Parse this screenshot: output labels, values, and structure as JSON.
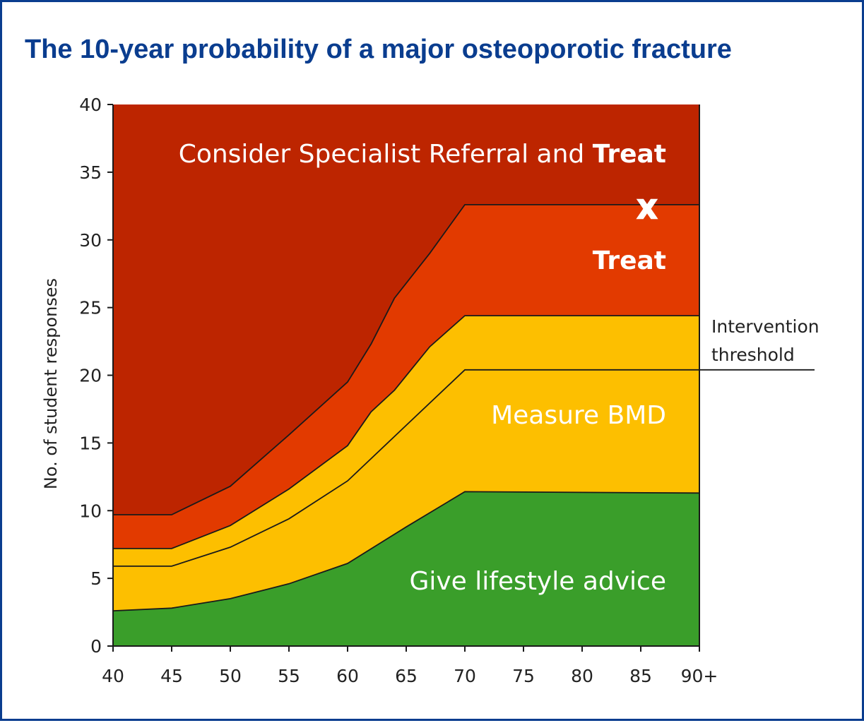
{
  "title": "The 10-year probability of a major osteoporotic fracture",
  "chart_data": {
    "type": "area",
    "title": "The 10-year probability of a major osteoporotic fracture",
    "xlabel": "",
    "ylabel": "No. of student responses",
    "x_ticks": [
      "40",
      "45",
      "50",
      "55",
      "60",
      "65",
      "70",
      "75",
      "80",
      "85",
      "90+"
    ],
    "y_ticks": [
      "0",
      "5",
      "10",
      "15",
      "20",
      "25",
      "30",
      "35",
      "40"
    ],
    "xlim": [
      40,
      90
    ],
    "ylim": [
      0,
      40
    ],
    "grid": false,
    "boundaries": [
      {
        "points": [
          [
            40,
            2.6
          ],
          [
            45,
            2.8
          ],
          [
            50,
            3.5
          ],
          [
            55,
            4.6
          ],
          [
            60,
            6.1
          ],
          [
            65,
            8.8
          ],
          [
            70,
            11.4
          ],
          [
            90,
            11.3
          ]
        ]
      },
      {
        "points": [
          [
            40,
            5.9
          ],
          [
            45,
            5.9
          ],
          [
            50,
            7.3
          ],
          [
            55,
            9.4
          ],
          [
            60,
            12.2
          ],
          [
            65,
            16.3
          ],
          [
            70,
            20.4
          ],
          [
            90,
            20.4
          ]
        ]
      },
      {
        "points": [
          [
            40,
            7.2
          ],
          [
            45,
            7.2
          ],
          [
            50,
            8.9
          ],
          [
            55,
            11.6
          ],
          [
            60,
            14.8
          ],
          [
            62,
            17.3
          ],
          [
            64,
            18.9
          ],
          [
            67,
            22.1
          ],
          [
            70,
            24.4
          ],
          [
            90,
            24.4
          ]
        ]
      },
      {
        "points": [
          [
            40,
            9.7
          ],
          [
            45,
            9.7
          ],
          [
            50,
            11.8
          ],
          [
            55,
            15.6
          ],
          [
            60,
            19.5
          ],
          [
            62,
            22.3
          ],
          [
            64,
            25.7
          ],
          [
            67,
            29.0
          ],
          [
            70,
            32.6
          ],
          [
            90,
            32.6
          ]
        ]
      }
    ],
    "zones": [
      {
        "label": "Give lifestyle advice",
        "color": "#3a9e2a"
      },
      {
        "label": "Measure BMD",
        "color": "#fdbf00"
      },
      {
        "label": "Measure BMD",
        "color": "#fdbf00"
      },
      {
        "label": "Treat",
        "color": "#e23a00"
      },
      {
        "label_plain": "Consider Specialist Referral and ",
        "label_bold": "Treat",
        "color": "#bd2500"
      }
    ],
    "annotations": {
      "marker": "X",
      "threshold_line1": "Intervention",
      "threshold_line2": "threshold"
    }
  }
}
